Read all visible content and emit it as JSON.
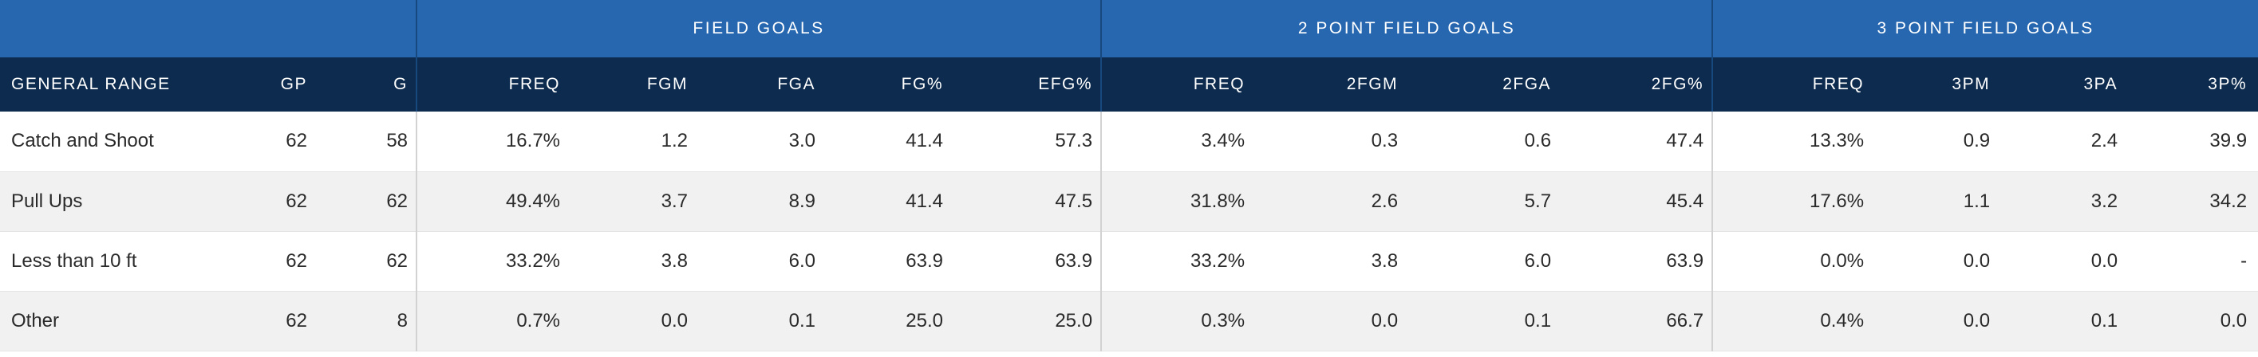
{
  "groups": {
    "field_goals": "FIELD GOALS",
    "two_point": "2 POINT FIELD GOALS",
    "three_point": "3 POINT FIELD GOALS"
  },
  "columns": {
    "range": "GENERAL RANGE",
    "gp": "GP",
    "g": "G",
    "fg_freq": "FREQ",
    "fgm": "FGM",
    "fga": "FGA",
    "fg_pct": "FG%",
    "efg_pct": "EFG%",
    "two_freq": "FREQ",
    "two_fgm": "2FGM",
    "two_fga": "2FGA",
    "two_pct": "2FG%",
    "three_freq": "FREQ",
    "three_pm": "3PM",
    "three_pa": "3PA",
    "three_pct": "3P%"
  },
  "rows": [
    {
      "range": "Catch and Shoot",
      "gp": "62",
      "g": "58",
      "fg_freq": "16.7%",
      "fgm": "1.2",
      "fga": "3.0",
      "fg_pct": "41.4",
      "efg_pct": "57.3",
      "two_freq": "3.4%",
      "two_fgm": "0.3",
      "two_fga": "0.6",
      "two_pct": "47.4",
      "three_freq": "13.3%",
      "three_pm": "0.9",
      "three_pa": "2.4",
      "three_pct": "39.9"
    },
    {
      "range": "Pull Ups",
      "gp": "62",
      "g": "62",
      "fg_freq": "49.4%",
      "fgm": "3.7",
      "fga": "8.9",
      "fg_pct": "41.4",
      "efg_pct": "47.5",
      "two_freq": "31.8%",
      "two_fgm": "2.6",
      "two_fga": "5.7",
      "two_pct": "45.4",
      "three_freq": "17.6%",
      "three_pm": "1.1",
      "three_pa": "3.2",
      "three_pct": "34.2"
    },
    {
      "range": "Less than 10 ft",
      "gp": "62",
      "g": "62",
      "fg_freq": "33.2%",
      "fgm": "3.8",
      "fga": "6.0",
      "fg_pct": "63.9",
      "efg_pct": "63.9",
      "two_freq": "33.2%",
      "two_fgm": "3.8",
      "two_fga": "6.0",
      "two_pct": "63.9",
      "three_freq": "0.0%",
      "three_pm": "0.0",
      "three_pa": "0.0",
      "three_pct": "-"
    },
    {
      "range": "Other",
      "gp": "62",
      "g": "8",
      "fg_freq": "0.7%",
      "fgm": "0.0",
      "fga": "0.1",
      "fg_pct": "25.0",
      "efg_pct": "25.0",
      "two_freq": "0.3%",
      "two_fgm": "0.0",
      "two_fga": "0.1",
      "two_pct": "66.7",
      "three_freq": "0.4%",
      "three_pm": "0.0",
      "three_pa": "0.1",
      "three_pct": "0.0"
    }
  ]
}
